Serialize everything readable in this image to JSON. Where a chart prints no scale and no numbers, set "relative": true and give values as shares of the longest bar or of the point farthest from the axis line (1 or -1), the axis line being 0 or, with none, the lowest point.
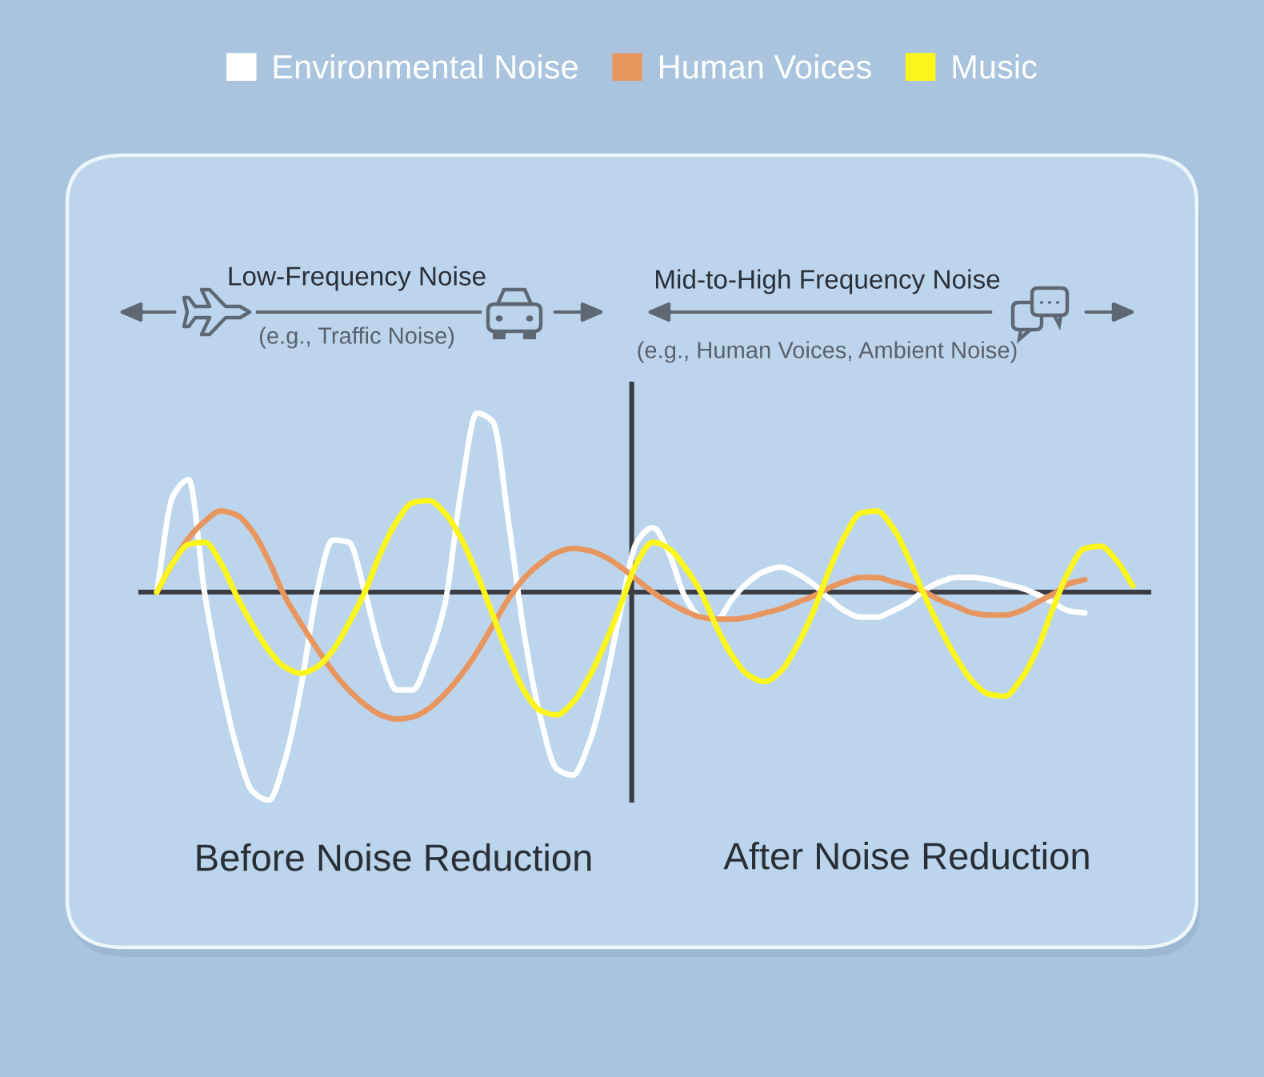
{
  "chart_data": {
    "type": "line",
    "relative": true,
    "legend": "top",
    "categories": [
      null,
      null,
      null,
      null,
      null,
      null,
      null,
      null,
      null,
      null,
      null,
      null,
      null,
      null,
      null,
      null,
      null,
      null,
      null,
      null,
      null,
      null,
      null,
      null,
      null,
      null,
      null,
      null,
      null,
      null,
      null,
      null,
      null,
      null,
      null,
      null,
      null,
      null,
      null,
      null,
      null,
      null,
      null,
      null,
      null,
      null,
      null,
      null,
      null,
      null,
      null,
      null,
      null,
      null,
      null,
      null,
      null,
      null,
      null,
      null,
      null,
      null
    ],
    "series": [
      {
        "name": "Environmental Noise",
        "color": "#ffffff",
        "values": [
          0.0,
          0.46,
          0.54,
          -0.01,
          -0.42,
          -0.75,
          -0.96,
          -1.0,
          -0.81,
          -0.46,
          0.0,
          0.25,
          0.24,
          0.0,
          -0.29,
          -0.47,
          -0.47,
          -0.31,
          -0.06,
          0.48,
          0.86,
          0.82,
          0.33,
          -0.22,
          -0.61,
          -0.85,
          -0.88,
          -0.73,
          -0.45,
          -0.08,
          0.24,
          0.31,
          0.19,
          -0.02,
          -0.12,
          -0.13,
          -0.03,
          0.05,
          0.1,
          0.12,
          0.09,
          0.04,
          -0.03,
          -0.09,
          -0.12,
          -0.12,
          -0.09,
          -0.05,
          0.01,
          0.05,
          0.07,
          0.07,
          0.06,
          0.04,
          0.02,
          -0.01,
          -0.05,
          -0.09,
          -0.1,
          null,
          null,
          null
        ]
      },
      {
        "name": "Human Voices",
        "color": "#e8965f",
        "values": [
          0.0,
          0.14,
          0.26,
          0.34,
          0.39,
          0.37,
          0.29,
          0.15,
          -0.02,
          -0.15,
          -0.27,
          -0.38,
          -0.47,
          -0.54,
          -0.59,
          -0.61,
          -0.6,
          -0.56,
          -0.49,
          -0.4,
          -0.29,
          -0.16,
          -0.03,
          0.07,
          0.14,
          0.19,
          0.21,
          0.2,
          0.17,
          0.12,
          0.06,
          0.0,
          -0.05,
          -0.09,
          -0.12,
          -0.13,
          -0.13,
          -0.12,
          -0.1,
          -0.08,
          -0.05,
          -0.02,
          0.02,
          0.05,
          0.07,
          0.07,
          0.05,
          0.03,
          0.0,
          -0.04,
          -0.07,
          -0.1,
          -0.11,
          -0.11,
          -0.09,
          -0.05,
          -0.01,
          0.04,
          0.06,
          null,
          null,
          null
        ]
      },
      {
        "name": "Music",
        "color": "#fbf51c",
        "values": [
          0.0,
          0.14,
          0.23,
          0.24,
          0.14,
          -0.02,
          -0.16,
          -0.28,
          -0.36,
          -0.39,
          -0.36,
          -0.28,
          -0.15,
          0.0,
          0.19,
          0.34,
          0.43,
          0.44,
          0.38,
          0.26,
          0.09,
          -0.11,
          -0.31,
          -0.48,
          -0.57,
          -0.59,
          -0.53,
          -0.41,
          -0.25,
          -0.06,
          0.14,
          0.24,
          0.21,
          0.12,
          0.0,
          -0.17,
          -0.31,
          -0.4,
          -0.43,
          -0.38,
          -0.26,
          -0.1,
          0.1,
          0.27,
          0.38,
          0.39,
          0.31,
          0.16,
          -0.02,
          -0.18,
          -0.32,
          -0.43,
          -0.49,
          -0.5,
          -0.42,
          -0.28,
          -0.08,
          0.1,
          0.21,
          0.22,
          0.15,
          0.03
        ]
      }
    ],
    "annotations": [
      "Low-Frequency Noise",
      "(e.g., Traffic Noise)",
      "Mid-to-High Frequency Noise",
      "(e.g., Human Voices, Ambient Noise)",
      "Before Noise Reduction",
      "After Noise Reduction"
    ]
  }
}
